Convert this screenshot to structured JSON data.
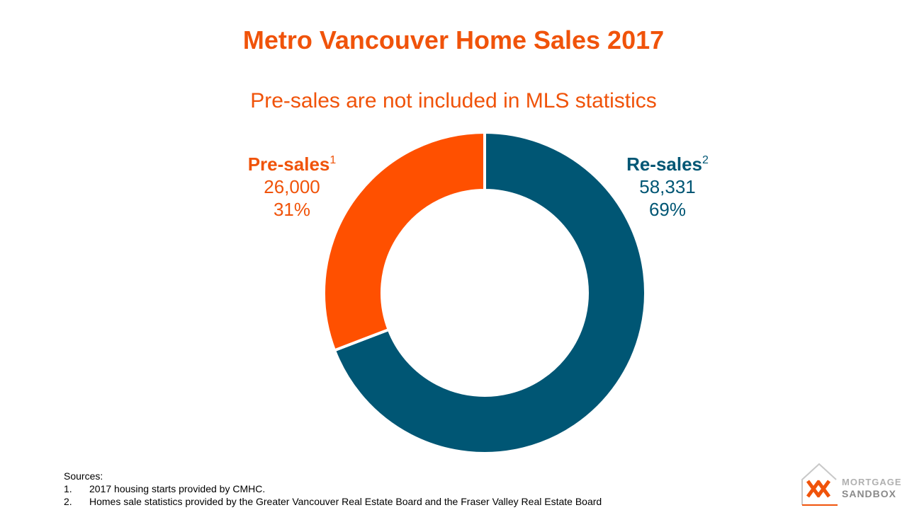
{
  "title": "Metro Vancouver Home Sales 2017",
  "subtitle": "Pre-sales are not included in MLS statistics",
  "chart_data": {
    "type": "pie",
    "series": [
      {
        "name": "Re-sales",
        "footnote": "2",
        "value": 58331,
        "value_label": "58,331",
        "percent_label": "69%",
        "color": "#005674"
      },
      {
        "name": "Pre-sales",
        "footnote": "1",
        "value": 26000,
        "value_label": "26,000",
        "percent_label": "31%",
        "color": "#ff5000"
      }
    ],
    "donut": true
  },
  "sources": {
    "heading": "Sources:",
    "items": [
      {
        "num": "1.",
        "text": "2017 housing starts provided by CMHC."
      },
      {
        "num": "2.",
        "text": "Homes sale statistics provided by the Greater Vancouver Real Estate Board and the Fraser Valley Real Estate Board"
      }
    ]
  },
  "logo": {
    "line1": "MORTGAGE",
    "line2": "SANDBOX",
    "accent": "#f0530a"
  }
}
